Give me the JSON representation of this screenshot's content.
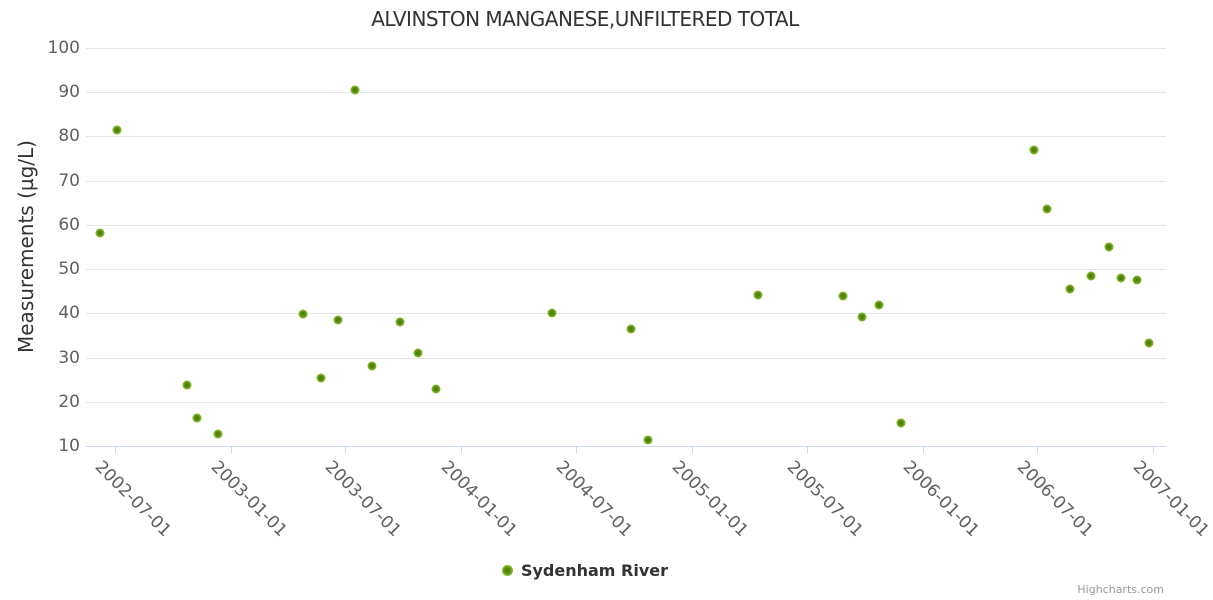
{
  "credits": "Highcharts.com",
  "colors": {
    "marker_outer": "#8ac92f",
    "marker_inner": "#4d7a06",
    "grid": "#e6e6e6",
    "axis_line": "#ccd6eb",
    "axis_label": "#606060",
    "text": "#333333",
    "credits_color": "#999999"
  },
  "chart_data": {
    "type": "scatter",
    "title": "ALVINSTON MANGANESE,UNFILTERED TOTAL",
    "xlabel": "",
    "ylabel": "Measurements (µg/L)",
    "ylim": [
      10,
      100
    ],
    "y_ticks": [
      10,
      20,
      30,
      40,
      50,
      60,
      70,
      80,
      90,
      100
    ],
    "x_range": [
      "2002-05-16",
      "2007-01-20"
    ],
    "x_ticks": [
      "2002-07-01",
      "2003-01-01",
      "2003-07-01",
      "2004-01-01",
      "2004-07-01",
      "2005-01-01",
      "2005-07-01",
      "2006-01-01",
      "2006-07-01",
      "2007-01-01"
    ],
    "grid": "horizontal-only",
    "legend_position": "bottom-center",
    "series": [
      {
        "name": "Sydenham River",
        "points": [
          {
            "x": "2002-06-07",
            "y": 58.2
          },
          {
            "x": "2002-07-04",
            "y": 81.4
          },
          {
            "x": "2002-10-23",
            "y": 23.8
          },
          {
            "x": "2002-11-08",
            "y": 16.3
          },
          {
            "x": "2002-12-11",
            "y": 12.8
          },
          {
            "x": "2003-04-25",
            "y": 39.8
          },
          {
            "x": "2003-05-23",
            "y": 25.4
          },
          {
            "x": "2003-06-19",
            "y": 38.4
          },
          {
            "x": "2003-07-17",
            "y": 90.5
          },
          {
            "x": "2003-08-13",
            "y": 28.2
          },
          {
            "x": "2003-09-25",
            "y": 38.0
          },
          {
            "x": "2003-10-24",
            "y": 31.0
          },
          {
            "x": "2003-11-22",
            "y": 23.0
          },
          {
            "x": "2004-05-23",
            "y": 40.0
          },
          {
            "x": "2004-09-26",
            "y": 36.4
          },
          {
            "x": "2004-10-23",
            "y": 11.4
          },
          {
            "x": "2005-04-15",
            "y": 44.2
          },
          {
            "x": "2005-08-28",
            "y": 44.0
          },
          {
            "x": "2005-09-27",
            "y": 39.2
          },
          {
            "x": "2005-10-24",
            "y": 41.8
          },
          {
            "x": "2005-11-28",
            "y": 15.2
          },
          {
            "x": "2006-06-26",
            "y": 77.0
          },
          {
            "x": "2006-07-17",
            "y": 63.5
          },
          {
            "x": "2006-08-22",
            "y": 45.5
          },
          {
            "x": "2006-09-25",
            "y": 48.5
          },
          {
            "x": "2006-10-24",
            "y": 55.0
          },
          {
            "x": "2006-11-12",
            "y": 48.0
          },
          {
            "x": "2006-12-06",
            "y": 47.5
          },
          {
            "x": "2006-12-26",
            "y": 33.3
          }
        ]
      }
    ]
  }
}
